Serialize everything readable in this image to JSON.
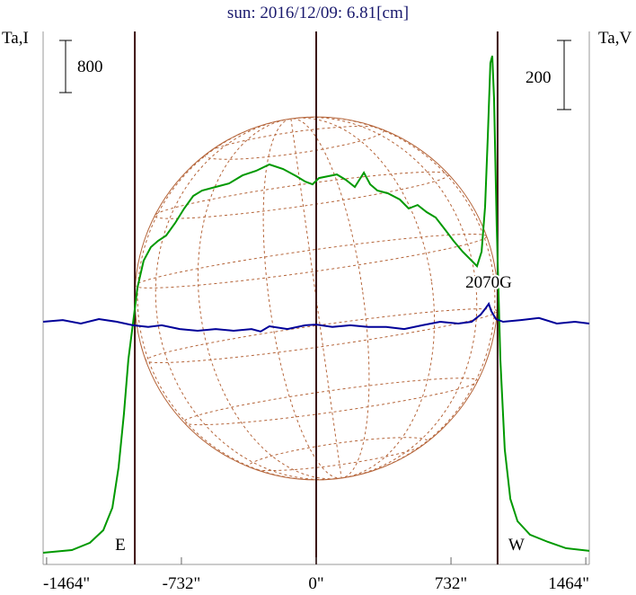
{
  "chart_data": {
    "type": "line",
    "title": "sun: 2016/12/09: 6.81[cm]",
    "left_label": "Ta,I",
    "right_label": "Ta,V",
    "i_scale": 800,
    "v_scale": 200,
    "east_label": "E",
    "west_label": "W",
    "annotation": "2070G",
    "limb_radius": 985,
    "xlim": [
      -1483,
      1483
    ],
    "xticks": [
      {
        "value": -1464,
        "label": "-1464\""
      },
      {
        "value": -732,
        "label": "-732\""
      },
      {
        "value": 0,
        "label": "0\""
      },
      {
        "value": 732,
        "label": "732\""
      },
      {
        "value": 1464,
        "label": "1464\""
      }
    ],
    "ylim": [
      -180,
      8000
    ],
    "y2lim": [
      -697,
      845
    ],
    "series": [
      {
        "name": "I",
        "color": "#009900",
        "x": [
          -1483,
          -1327,
          -1229,
          -1156,
          -1107,
          -1073,
          -1044,
          -1020,
          -995,
          -971,
          -937,
          -898,
          -859,
          -815,
          -766,
          -717,
          -668,
          -620,
          -546,
          -473,
          -400,
          -327,
          -254,
          -180,
          -107,
          -59,
          -20,
          15,
          63,
          112,
          161,
          210,
          259,
          293,
          332,
          390,
          454,
          502,
          551,
          600,
          649,
          698,
          746,
          795,
          844,
          873,
          898,
          917,
          932,
          946,
          956,
          966,
          980,
          1000,
          1024,
          1054,
          1093,
          1161,
          1259,
          1356,
          1483
        ],
        "values": [
          0,
          41,
          152,
          345,
          690,
          1310,
          2137,
          2965,
          3517,
          4068,
          4482,
          4689,
          4786,
          4868,
          5061,
          5282,
          5475,
          5558,
          5613,
          5668,
          5792,
          5861,
          5958,
          5889,
          5778,
          5695,
          5654,
          5750,
          5778,
          5806,
          5723,
          5613,
          5833,
          5654,
          5558,
          5516,
          5420,
          5282,
          5337,
          5227,
          5144,
          4965,
          4786,
          4620,
          4482,
          4399,
          4620,
          5309,
          6412,
          7516,
          7626,
          6964,
          5034,
          2965,
          1586,
          827,
          483,
          276,
          165,
          69,
          28
        ]
      },
      {
        "name": "V",
        "color": "#000099",
        "axis": "y2",
        "x": [
          -1483,
          -1376,
          -1278,
          -1180,
          -1083,
          -995,
          -912,
          -839,
          -741,
          -644,
          -546,
          -449,
          -351,
          -302,
          -254,
          -156,
          -59,
          0,
          88,
          185,
          283,
          380,
          478,
          576,
          673,
          771,
          844,
          893,
          917,
          937,
          951,
          976,
          1015,
          1112,
          1210,
          1307,
          1405,
          1483
        ],
        "values": [
          5,
          10,
          0,
          13,
          5,
          -5,
          -10,
          -5,
          -16,
          -21,
          -16,
          -21,
          -16,
          -23,
          -8,
          -16,
          -5,
          -3,
          -10,
          -5,
          -10,
          -10,
          -16,
          -5,
          5,
          0,
          5,
          26,
          42,
          57,
          36,
          13,
          5,
          10,
          16,
          0,
          5,
          0
        ]
      }
    ]
  }
}
